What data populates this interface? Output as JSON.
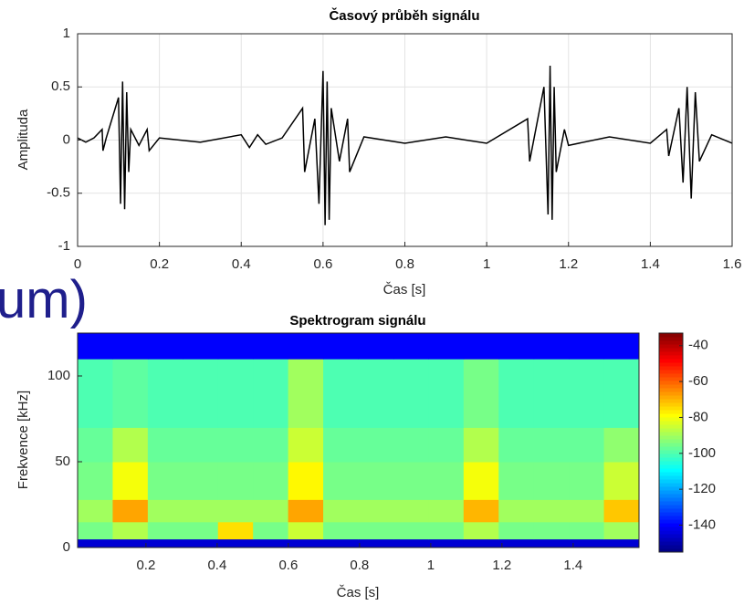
{
  "background_text": "um)",
  "chart_data": [
    {
      "type": "line",
      "title": "Časový průběh signálu",
      "xlabel": "Čas [s]",
      "ylabel": "Amplituda",
      "color": "#000000",
      "grid": true,
      "x": [
        0,
        0.02,
        0.04,
        0.06,
        0.062,
        0.07,
        0.1,
        0.105,
        0.11,
        0.115,
        0.12,
        0.125,
        0.13,
        0.15,
        0.17,
        0.175,
        0.2,
        0.3,
        0.4,
        0.42,
        0.44,
        0.46,
        0.5,
        0.55,
        0.555,
        0.58,
        0.59,
        0.6,
        0.605,
        0.61,
        0.615,
        0.62,
        0.64,
        0.66,
        0.665,
        0.7,
        0.8,
        0.9,
        1.0,
        1.1,
        1.105,
        1.14,
        1.15,
        1.155,
        1.16,
        1.165,
        1.17,
        1.19,
        1.2,
        1.3,
        1.4,
        1.44,
        1.445,
        1.47,
        1.48,
        1.49,
        1.5,
        1.51,
        1.52,
        1.55,
        1.6
      ],
      "values": [
        0.02,
        -0.02,
        0.02,
        0.1,
        -0.1,
        0.02,
        0.4,
        -0.6,
        0.55,
        -0.65,
        0.45,
        -0.3,
        0.1,
        -0.05,
        0.1,
        -0.1,
        0.02,
        -0.02,
        0.05,
        -0.07,
        0.05,
        -0.04,
        0.02,
        0.3,
        -0.3,
        0.2,
        -0.6,
        0.65,
        -0.8,
        0.55,
        -0.75,
        0.3,
        -0.2,
        0.2,
        -0.3,
        0.03,
        -0.03,
        0.03,
        -0.03,
        0.2,
        -0.2,
        0.5,
        -0.7,
        0.7,
        -0.75,
        0.5,
        -0.3,
        0.1,
        -0.05,
        0.03,
        -0.03,
        0.1,
        -0.15,
        0.3,
        -0.4,
        0.5,
        -0.55,
        0.45,
        -0.2,
        0.05,
        -0.03
      ],
      "xlim": [
        0,
        1.6
      ],
      "ylim": [
        -1,
        1
      ],
      "xticks": [
        0,
        0.2,
        0.4,
        0.6,
        0.8,
        1,
        1.2,
        1.4,
        1.6
      ],
      "yticks": [
        -1,
        -0.5,
        0,
        0.5,
        1
      ]
    },
    {
      "type": "heatmap",
      "title": "Spektrogram signálu",
      "xlabel": "Čas [s]",
      "ylabel": "Frekvence [kHz]",
      "colormap": "jet",
      "xlim": [
        0.008,
        1.585
      ],
      "ylim": [
        0,
        125
      ],
      "xticks": [
        0.2,
        0.4,
        0.6,
        0.8,
        1,
        1.2,
        1.4
      ],
      "yticks": [
        0,
        50,
        100
      ],
      "y_edges": [
        0,
        5,
        15,
        28,
        50,
        70,
        110,
        125
      ],
      "z": [
        [
          -145,
          -145,
          -145,
          -145,
          -145,
          -145,
          -145,
          -145,
          -145,
          -145,
          -145,
          -145,
          -145,
          -145,
          -145,
          -145
        ],
        [
          -95,
          -88,
          -95,
          -95,
          -75,
          -95,
          -85,
          -95,
          -95,
          -95,
          -95,
          -88,
          -95,
          -95,
          -95,
          -90
        ],
        [
          -90,
          -68,
          -90,
          -90,
          -90,
          -90,
          -68,
          -90,
          -90,
          -90,
          -90,
          -70,
          -90,
          -90,
          -90,
          -72
        ],
        [
          -95,
          -80,
          -95,
          -95,
          -95,
          -95,
          -78,
          -95,
          -95,
          -95,
          -95,
          -80,
          -95,
          -95,
          -95,
          -85
        ],
        [
          -97,
          -88,
          -97,
          -97,
          -97,
          -97,
          -85,
          -97,
          -97,
          -97,
          -97,
          -88,
          -97,
          -97,
          -97,
          -92
        ],
        [
          -100,
          -98,
          -100,
          -100,
          -100,
          -100,
          -90,
          -100,
          -100,
          -100,
          -100,
          -95,
          -100,
          -100,
          -100,
          -100
        ],
        [
          -140,
          -140,
          -140,
          -140,
          -140,
          -140,
          -140,
          -140,
          -140,
          -140,
          -140,
          -140,
          -140,
          -140,
          -140,
          -140
        ]
      ],
      "clim": [
        -155,
        -33
      ],
      "cticks": [
        -140,
        -120,
        -100,
        -80,
        -60,
        -40
      ]
    }
  ]
}
